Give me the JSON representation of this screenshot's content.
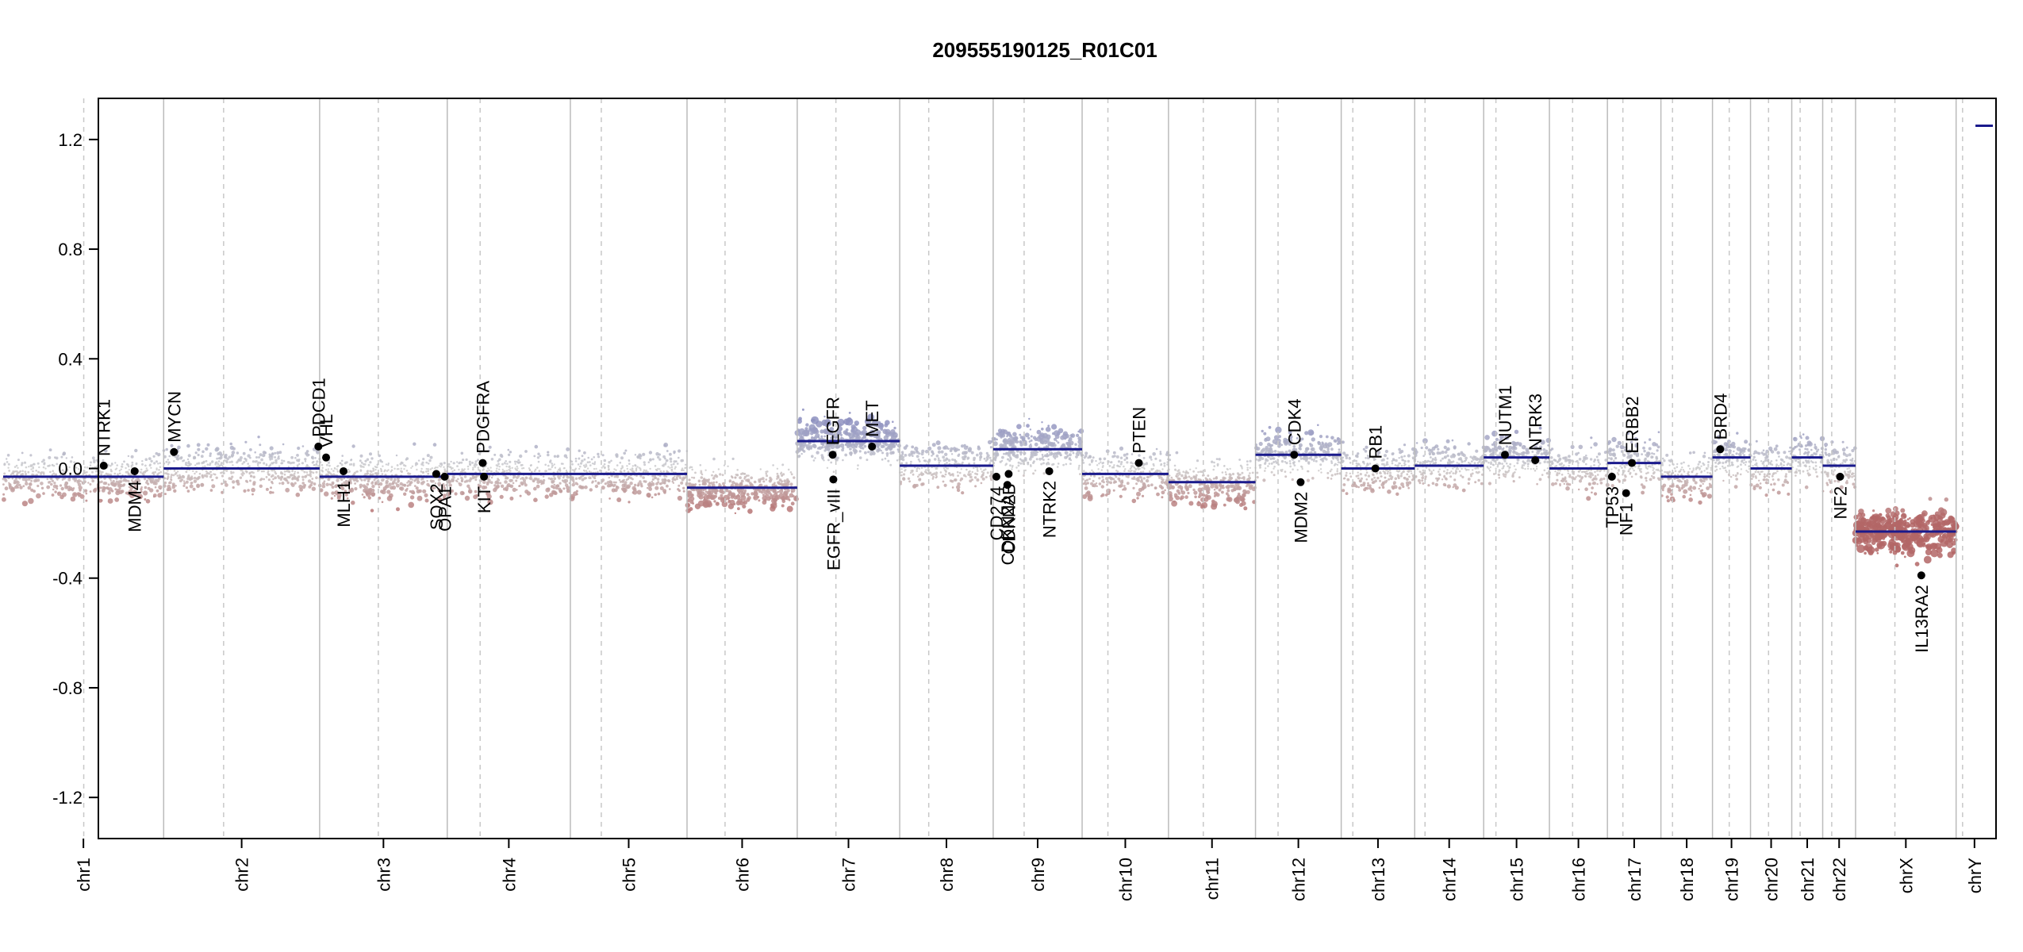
{
  "chart_data": {
    "type": "scatter",
    "title": "209555190125_R01C01",
    "xlabel": "",
    "ylabel": "",
    "ylim": [
      -1.35,
      1.35
    ],
    "y_ticks": [
      -1.2,
      -0.8,
      -0.4,
      0.0,
      0.4,
      0.8,
      1.2
    ],
    "y_tick_labels": [
      "-1.2",
      "-0.8",
      "-0.4",
      "0.0",
      "0.4",
      "0.8",
      "1.2"
    ],
    "grid": false,
    "colors": {
      "segment": "#1a1a8c",
      "gain": "#8e8fc0",
      "neutral": "#cccccc",
      "loss": "#b36a6a",
      "boundary": "#bbbbbb",
      "centromere": "#c8c8c8",
      "gene_point": "#000000"
    },
    "chromosomes": [
      {
        "name": "chr1",
        "start": 0,
        "end": 249,
        "centromere": 125
      },
      {
        "name": "chr2",
        "start": 249,
        "end": 491,
        "centromere": 342
      },
      {
        "name": "chr3",
        "start": 491,
        "end": 689,
        "centromere": 582
      },
      {
        "name": "chr4",
        "start": 689,
        "end": 880,
        "centromere": 740
      },
      {
        "name": "chr5",
        "start": 880,
        "end": 1061,
        "centromere": 928
      },
      {
        "name": "chr6",
        "start": 1061,
        "end": 1232,
        "centromere": 1120
      },
      {
        "name": "chr7",
        "start": 1232,
        "end": 1391,
        "centromere": 1292
      },
      {
        "name": "chr8",
        "start": 1391,
        "end": 1536,
        "centromere": 1436
      },
      {
        "name": "chr9",
        "start": 1536,
        "end": 1674,
        "centromere": 1584
      },
      {
        "name": "chr10",
        "start": 1674,
        "end": 1808,
        "centromere": 1714
      },
      {
        "name": "chr11",
        "start": 1808,
        "end": 1943,
        "centromere": 1862
      },
      {
        "name": "chr12",
        "start": 1943,
        "end": 2076,
        "centromere": 1978
      },
      {
        "name": "chr13",
        "start": 2076,
        "end": 2190,
        "centromere": 2094
      },
      {
        "name": "chr14",
        "start": 2190,
        "end": 2297,
        "centromere": 2206
      },
      {
        "name": "chr15",
        "start": 2297,
        "end": 2399,
        "centromere": 2316
      },
      {
        "name": "chr16",
        "start": 2399,
        "end": 2489,
        "centromere": 2435
      },
      {
        "name": "chr17",
        "start": 2489,
        "end": 2572,
        "centromere": 2513
      },
      {
        "name": "chr18",
        "start": 2572,
        "end": 2652,
        "centromere": 2590
      },
      {
        "name": "chr19",
        "start": 2652,
        "end": 2711,
        "centromere": 2678
      },
      {
        "name": "chr20",
        "start": 2711,
        "end": 2775,
        "centromere": 2739
      },
      {
        "name": "chr21",
        "start": 2775,
        "end": 2823,
        "centromere": 2788
      },
      {
        "name": "chr22",
        "start": 2823,
        "end": 2874,
        "centromere": 2837
      },
      {
        "name": "chrX",
        "start": 2874,
        "end": 3030,
        "centromere": 2935
      },
      {
        "name": "chrY",
        "start": 3030,
        "end": 3087,
        "centromere": 3040
      }
    ],
    "segments": [
      {
        "start": 0,
        "end": 249,
        "value": -0.03
      },
      {
        "start": 249,
        "end": 491,
        "value": 0.0
      },
      {
        "start": 491,
        "end": 689,
        "value": -0.03
      },
      {
        "start": 689,
        "end": 1061,
        "value": -0.02
      },
      {
        "start": 1061,
        "end": 1232,
        "value": -0.07
      },
      {
        "start": 1232,
        "end": 1391,
        "value": 0.1
      },
      {
        "start": 1391,
        "end": 1536,
        "value": 0.01
      },
      {
        "start": 1536,
        "end": 1674,
        "value": 0.07
      },
      {
        "start": 1674,
        "end": 1808,
        "value": -0.02
      },
      {
        "start": 1808,
        "end": 1943,
        "value": -0.05
      },
      {
        "start": 1943,
        "end": 2076,
        "value": 0.05
      },
      {
        "start": 2076,
        "end": 2190,
        "value": 0.0
      },
      {
        "start": 2190,
        "end": 2297,
        "value": 0.01
      },
      {
        "start": 2297,
        "end": 2399,
        "value": 0.04
      },
      {
        "start": 2399,
        "end": 2489,
        "value": 0.0
      },
      {
        "start": 2489,
        "end": 2572,
        "value": 0.02
      },
      {
        "start": 2572,
        "end": 2652,
        "value": -0.03
      },
      {
        "start": 2652,
        "end": 2711,
        "value": 0.04
      },
      {
        "start": 2711,
        "end": 2775,
        "value": 0.0
      },
      {
        "start": 2775,
        "end": 2823,
        "value": 0.04
      },
      {
        "start": 2823,
        "end": 2874,
        "value": 0.01
      },
      {
        "start": 2874,
        "end": 3030,
        "value": -0.23
      },
      {
        "start": 3060,
        "end": 3087,
        "value": 1.25
      }
    ],
    "genes": [
      {
        "name": "NTRK1",
        "x": 156,
        "y": 0.01,
        "side": "above"
      },
      {
        "name": "MDM4",
        "x": 204,
        "y": -0.01,
        "side": "below"
      },
      {
        "name": "MYCN",
        "x": 265,
        "y": 0.06,
        "side": "above"
      },
      {
        "name": "PDCD1",
        "x": 489,
        "y": 0.08,
        "side": "above"
      },
      {
        "name": "VHL",
        "x": 501,
        "y": 0.04,
        "side": "above"
      },
      {
        "name": "MLH1",
        "x": 528,
        "y": -0.01,
        "side": "below"
      },
      {
        "name": "SOX2",
        "x": 672,
        "y": -0.02,
        "side": "below"
      },
      {
        "name": "OPA1",
        "x": 685,
        "y": -0.03,
        "side": "below"
      },
      {
        "name": "PDGFRA",
        "x": 744,
        "y": 0.02,
        "side": "above"
      },
      {
        "name": "KIT",
        "x": 746,
        "y": -0.03,
        "side": "below"
      },
      {
        "name": "EGFR",
        "x": 1287,
        "y": 0.05,
        "side": "above"
      },
      {
        "name": "EGFR_vIII",
        "x": 1288,
        "y": -0.04,
        "side": "below"
      },
      {
        "name": "MET",
        "x": 1348,
        "y": 0.08,
        "side": "above"
      },
      {
        "name": "CD274",
        "x": 1541,
        "y": -0.03,
        "side": "below"
      },
      {
        "name": "CDKN2A",
        "x": 1558,
        "y": -0.06,
        "side": "below"
      },
      {
        "name": "CDKN2B",
        "x": 1560,
        "y": -0.02,
        "side": "below"
      },
      {
        "name": "NTRK2",
        "x": 1623,
        "y": -0.01,
        "side": "below"
      },
      {
        "name": "PTEN",
        "x": 1762,
        "y": 0.02,
        "side": "above"
      },
      {
        "name": "CDK4",
        "x": 2003,
        "y": 0.05,
        "side": "above"
      },
      {
        "name": "MDM2",
        "x": 2013,
        "y": -0.05,
        "side": "below"
      },
      {
        "name": "RB1",
        "x": 2129,
        "y": 0.0,
        "side": "above"
      },
      {
        "name": "NUTM1",
        "x": 2330,
        "y": 0.05,
        "side": "above"
      },
      {
        "name": "NTRK3",
        "x": 2377,
        "y": 0.03,
        "side": "above"
      },
      {
        "name": "TP53",
        "x": 2496,
        "y": -0.03,
        "side": "below"
      },
      {
        "name": "NF1",
        "x": 2518,
        "y": -0.09,
        "side": "below"
      },
      {
        "name": "ERBB2",
        "x": 2527,
        "y": 0.02,
        "side": "above"
      },
      {
        "name": "BRD4",
        "x": 2664,
        "y": 0.07,
        "side": "above"
      },
      {
        "name": "NF2",
        "x": 2850,
        "y": -0.03,
        "side": "below"
      },
      {
        "name": "IL13RA2",
        "x": 2976,
        "y": -0.39,
        "side": "below"
      }
    ]
  }
}
